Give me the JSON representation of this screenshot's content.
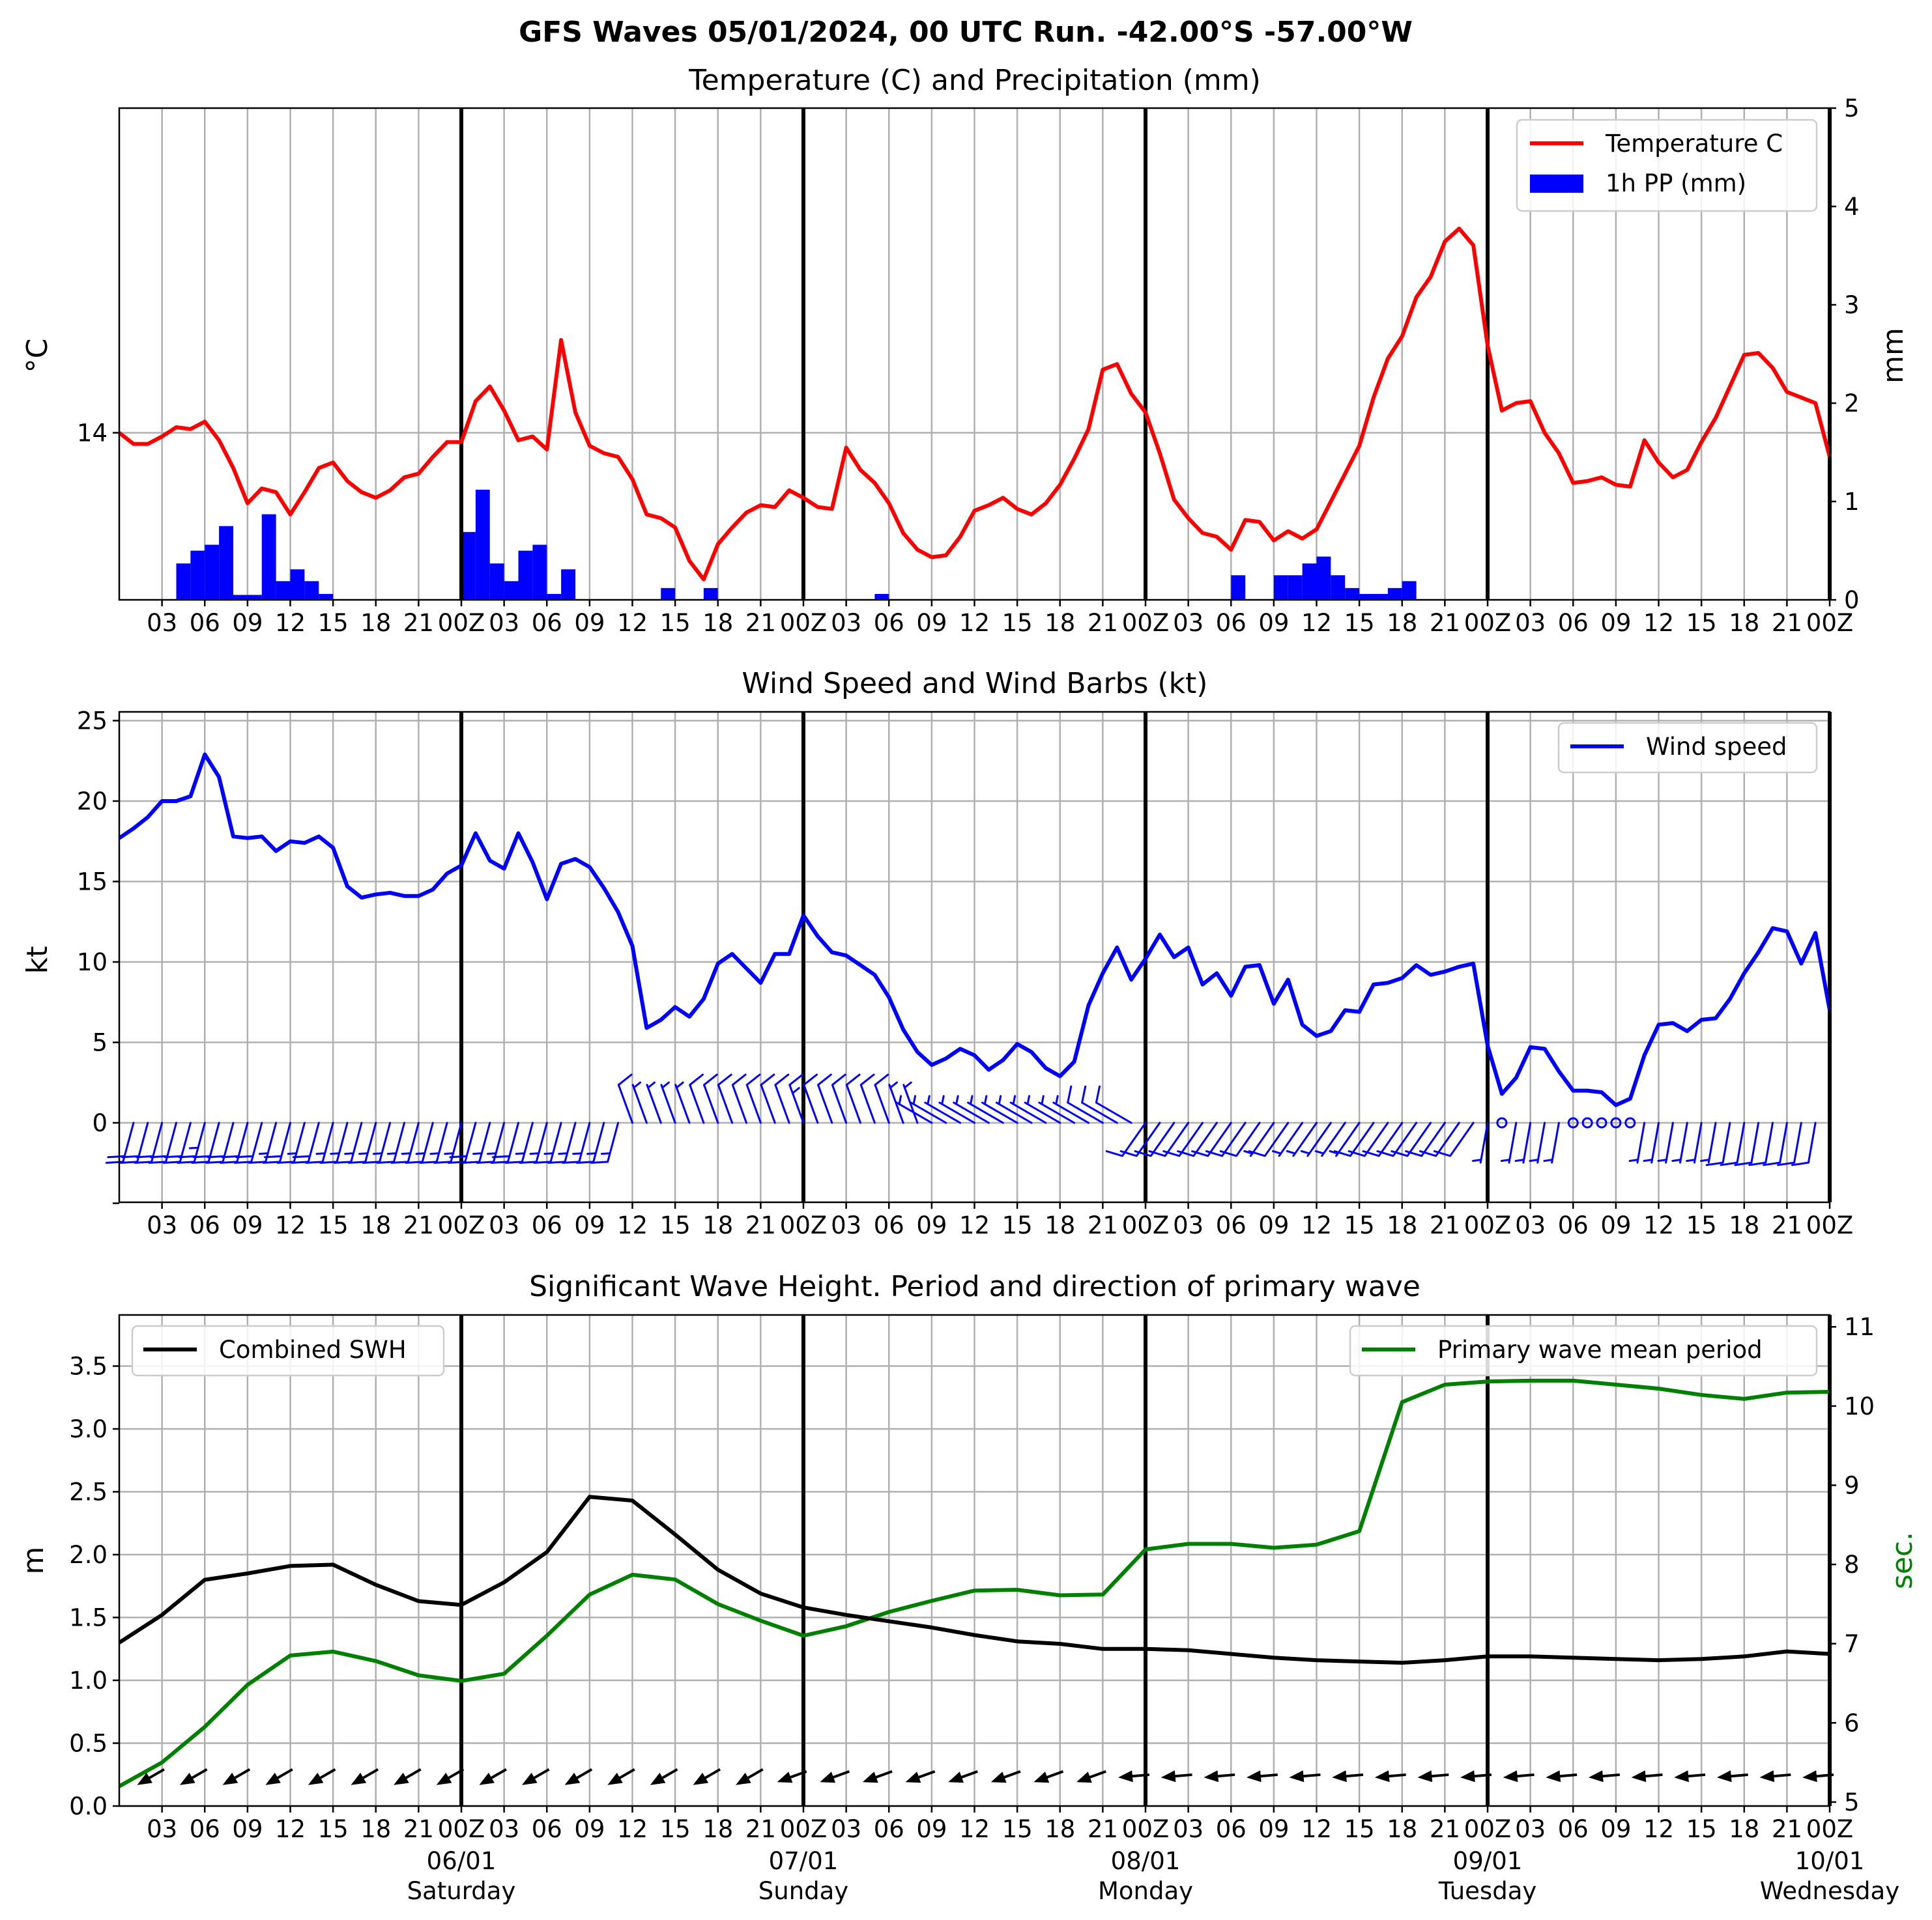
{
  "title": "GFS Waves 05/01/2024, 00 UTC Run. -42.00°S -57.00°W",
  "x_hour_labels": [
    "03",
    "06",
    "09",
    "12",
    "15",
    "18",
    "21",
    "00Z",
    "03",
    "06",
    "09",
    "12",
    "15",
    "18",
    "21",
    "00Z",
    "03",
    "06",
    "09",
    "12",
    "15",
    "18",
    "21",
    "00Z",
    "03",
    "06",
    "09",
    "12",
    "15",
    "18",
    "21",
    "00Z",
    "03",
    "06",
    "09",
    "12",
    "15",
    "18",
    "21",
    "00Z"
  ],
  "x_date_labels": [
    {
      "date": "06/01",
      "day": "Saturday"
    },
    {
      "date": "07/01",
      "day": "Sunday"
    },
    {
      "date": "08/01",
      "day": "Monday"
    },
    {
      "date": "09/01",
      "day": "Tuesday"
    },
    {
      "date": "10/01",
      "day": "Wednesday"
    }
  ],
  "colors": {
    "temperature": "#ff0000",
    "precip": "#0000ff",
    "wind": "#0000ff",
    "swh": "#000000",
    "period": "#008000"
  },
  "chart_data": [
    {
      "type": "line",
      "title": "Temperature (C) and Precipitation (mm)",
      "x_unit": "hours since 05/01/2024 00 UTC",
      "ylabel": "°C",
      "ylabel_right": "mm",
      "y_ticks": [
        "14"
      ],
      "y_right_ticks": [
        "0",
        "1",
        "2",
        "3",
        "4",
        "5"
      ],
      "ylim_right": [
        0,
        5
      ],
      "legend": [
        "Temperature C",
        "1h PP (mm)"
      ],
      "legend_position": "upper right",
      "grid": true,
      "temperature": {
        "name": "Temperature C",
        "x": [
          0,
          1,
          2,
          3,
          4,
          5,
          6,
          7,
          8,
          9,
          10,
          11,
          12,
          13,
          14,
          15,
          16,
          17,
          18,
          19,
          20,
          21,
          22,
          23,
          24,
          25,
          26,
          27,
          28,
          29,
          30,
          31,
          32,
          33,
          34,
          35,
          36,
          37,
          38,
          39,
          40,
          41,
          42,
          43,
          44,
          45,
          46,
          47,
          48,
          49,
          50,
          51,
          52,
          53,
          54,
          55,
          56,
          57,
          58,
          59,
          60,
          61,
          62,
          63,
          64,
          65,
          66,
          67,
          68,
          69,
          70,
          71,
          72,
          73,
          74,
          75,
          76,
          77,
          78,
          79,
          80,
          81,
          82,
          83,
          84,
          85,
          86,
          87,
          88,
          89,
          90,
          91,
          92,
          93,
          94,
          95,
          96,
          97,
          98,
          99,
          100,
          101,
          102,
          103,
          104,
          105,
          106,
          107,
          108,
          109,
          110,
          111,
          112,
          113,
          114,
          115,
          116,
          117,
          118,
          119,
          120
        ],
        "values": [
          14.0,
          13.4,
          13.4,
          13.8,
          14.3,
          14.2,
          14.6,
          13.6,
          12.1,
          10.2,
          11.0,
          10.8,
          9.6,
          10.8,
          12.1,
          12.4,
          11.4,
          10.8,
          10.5,
          10.9,
          11.6,
          11.8,
          12.7,
          13.5,
          13.5,
          15.7,
          16.5,
          15.2,
          13.6,
          13.8,
          13.1,
          19.0,
          15.1,
          13.3,
          12.9,
          12.7,
          11.5,
          9.6,
          9.4,
          8.9,
          7.1,
          6.1,
          8.0,
          8.9,
          9.7,
          10.1,
          10.0,
          10.9,
          10.5,
          10.0,
          9.9,
          13.2,
          12.0,
          11.3,
          10.2,
          8.6,
          7.7,
          7.3,
          7.4,
          8.4,
          9.8,
          10.1,
          10.5,
          9.9,
          9.6,
          10.2,
          11.2,
          12.6,
          14.2,
          17.4,
          17.7,
          16.1,
          15.1,
          12.9,
          10.4,
          9.4,
          8.6,
          8.4,
          7.7,
          9.3,
          9.2,
          8.2,
          8.7,
          8.3,
          8.8,
          10.3,
          11.8,
          13.3,
          15.9,
          18.0,
          19.2,
          21.3,
          22.4,
          24.3,
          25.0,
          24.1,
          18.7,
          15.2,
          15.6,
          15.7,
          14.0,
          12.9,
          11.3,
          11.4,
          11.6,
          11.2,
          11.1,
          13.6,
          12.4,
          11.6,
          12.0,
          13.5,
          14.8,
          16.5,
          18.2,
          18.3,
          17.5,
          16.2,
          15.9,
          15.6,
          12.7
        ]
      },
      "precipitation": {
        "name": "1h PP (mm)",
        "x": [
          0,
          1,
          2,
          3,
          4,
          5,
          6,
          7,
          8,
          9,
          10,
          11,
          12,
          13,
          14,
          15,
          16,
          17,
          18,
          19,
          20,
          21,
          22,
          23,
          24,
          25,
          26,
          27,
          28,
          29,
          30,
          31,
          32,
          33,
          34,
          35,
          36,
          37,
          38,
          39,
          40,
          41,
          42,
          43,
          44,
          45,
          46,
          47,
          48,
          49,
          50,
          51,
          52,
          53,
          54,
          55,
          56,
          57,
          58,
          59,
          60,
          61,
          62,
          63,
          64,
          65,
          66,
          67,
          68,
          69,
          70,
          71,
          72,
          73,
          74,
          75,
          76,
          77,
          78,
          79,
          80,
          81,
          82,
          83,
          84,
          85,
          86,
          87,
          88,
          89,
          90,
          91,
          92,
          93,
          94,
          95,
          96,
          97,
          98,
          99,
          100,
          101,
          102,
          103,
          104,
          105,
          106,
          107,
          108,
          109,
          110,
          111,
          112,
          113,
          114,
          115,
          116,
          117,
          118,
          119,
          120
        ],
        "values": [
          0,
          0,
          0,
          0,
          0.37,
          0.5,
          0.56,
          0.75,
          0.05,
          0.05,
          0.87,
          0.19,
          0.31,
          0.19,
          0.06,
          0,
          0,
          0,
          0,
          0,
          0,
          0,
          0,
          0,
          0.69,
          1.12,
          0.37,
          0.19,
          0.5,
          0.56,
          0.06,
          0.31,
          0,
          0,
          0,
          0,
          0,
          0,
          0.12,
          0,
          0,
          0.12,
          0,
          0,
          0,
          0,
          0,
          0,
          0,
          0,
          0,
          0,
          0,
          0.06,
          0,
          0,
          0,
          0,
          0,
          0,
          0,
          0,
          0,
          0,
          0,
          0,
          0,
          0,
          0,
          0,
          0,
          0,
          0,
          0,
          0,
          0,
          0,
          0,
          0.25,
          0,
          0,
          0.25,
          0.25,
          0.37,
          0.44,
          0.25,
          0.12,
          0.06,
          0.06,
          0.12,
          0.19,
          0,
          0,
          0,
          0,
          0,
          0,
          0,
          0,
          0,
          0,
          0,
          0,
          0,
          0,
          0,
          0,
          0,
          0,
          0,
          0,
          0,
          0,
          0,
          0,
          0,
          0,
          0,
          0,
          0,
          0
        ]
      }
    },
    {
      "type": "line",
      "title": "Wind Speed and Wind Barbs (kt)",
      "x_unit": "hours since 05/01/2024 00 UTC",
      "ylabel": "kt",
      "y_ticks": [
        "0",
        "5",
        "10",
        "15",
        "20",
        "25"
      ],
      "ylim": [
        -5,
        25.5
      ],
      "legend": [
        "Wind speed"
      ],
      "legend_position": "upper right",
      "grid": true,
      "series": [
        {
          "name": "Wind speed",
          "x": [
            0,
            1,
            2,
            3,
            4,
            5,
            6,
            7,
            8,
            9,
            10,
            11,
            12,
            13,
            14,
            15,
            16,
            17,
            18,
            19,
            20,
            21,
            22,
            23,
            24,
            25,
            26,
            27,
            28,
            29,
            30,
            31,
            32,
            33,
            34,
            35,
            36,
            37,
            38,
            39,
            40,
            41,
            42,
            43,
            44,
            45,
            46,
            47,
            48,
            49,
            50,
            51,
            52,
            53,
            54,
            55,
            56,
            57,
            58,
            59,
            60,
            61,
            62,
            63,
            64,
            65,
            66,
            67,
            68,
            69,
            70,
            71,
            72,
            73,
            74,
            75,
            76,
            77,
            78,
            79,
            80,
            81,
            82,
            83,
            84,
            85,
            86,
            87,
            88,
            89,
            90,
            91,
            92,
            93,
            94,
            95,
            96,
            97,
            98,
            99,
            100,
            101,
            102,
            103,
            104,
            105,
            106,
            107,
            108,
            109,
            110,
            111,
            112,
            113,
            114,
            115,
            116,
            117,
            118,
            119,
            120
          ],
          "values": [
            17.7,
            18.3,
            19.0,
            20.0,
            20.0,
            20.3,
            22.9,
            21.5,
            17.8,
            17.7,
            17.8,
            16.9,
            17.5,
            17.4,
            17.8,
            17.1,
            14.7,
            14.0,
            14.2,
            14.3,
            14.1,
            14.1,
            14.5,
            15.5,
            16.0,
            18.0,
            16.3,
            15.8,
            18.0,
            16.2,
            13.9,
            16.1,
            16.4,
            15.9,
            14.6,
            13.1,
            11.0,
            5.9,
            6.4,
            7.2,
            6.6,
            7.7,
            9.9,
            10.5,
            9.6,
            8.7,
            10.5,
            10.5,
            12.9,
            11.6,
            10.6,
            10.4,
            9.8,
            9.2,
            7.8,
            5.8,
            4.4,
            3.6,
            4.0,
            4.6,
            4.2,
            3.3,
            3.9,
            4.9,
            4.4,
            3.4,
            2.9,
            3.8,
            7.3,
            9.3,
            10.9,
            8.9,
            10.2,
            11.7,
            10.3,
            10.9,
            8.6,
            9.3,
            7.9,
            9.7,
            9.8,
            7.4,
            8.9,
            6.1,
            5.4,
            5.7,
            7.0,
            6.9,
            8.6,
            8.7,
            9.0,
            9.8,
            9.2,
            9.4,
            9.7,
            9.9,
            4.8,
            1.8,
            2.8,
            4.7,
            4.6,
            3.2,
            2.0,
            2.0,
            1.9,
            1.1,
            1.5,
            4.2,
            6.1,
            6.2,
            5.7,
            6.4,
            6.5,
            7.7,
            9.3,
            10.6,
            12.1,
            11.9,
            9.9,
            11.8,
            7.0
          ]
        }
      ],
      "barbs_direction_deg": [
        {
          "from_hour": 0,
          "to_hour": 36,
          "deg": 195
        },
        {
          "from_hour": 36,
          "to_hour": 57,
          "deg": 340
        },
        {
          "from_hour": 57,
          "to_hour": 72,
          "deg": 300
        },
        {
          "from_hour": 72,
          "to_hour": 96,
          "deg": 215
        },
        {
          "from_hour": 96,
          "to_hour": 120,
          "deg": 190
        }
      ]
    },
    {
      "type": "line",
      "title": "Significant Wave Height. Period and direction of primary wave",
      "x_unit": "hours since 05/01/2024 00 UTC",
      "ylabel": "m",
      "ylabel_right": "sec.",
      "y_ticks": [
        "0.0",
        "0.5",
        "1.0",
        "1.5",
        "2.0",
        "2.5",
        "3.0",
        "3.5"
      ],
      "y_right_ticks": [
        "5",
        "6",
        "7",
        "8",
        "9",
        "10",
        "11"
      ],
      "ylim": [
        0,
        3.9
      ],
      "ylim_right": [
        4.95,
        11.15
      ],
      "legend_left": [
        "Combined SWH"
      ],
      "legend_right": [
        "Primary wave mean period"
      ],
      "grid": true,
      "series": [
        {
          "name": "Combined SWH",
          "x": [
            0,
            3,
            6,
            9,
            12,
            15,
            18,
            21,
            24,
            27,
            30,
            33,
            36,
            39,
            42,
            45,
            48,
            51,
            54,
            57,
            60,
            63,
            66,
            69,
            72,
            75,
            78,
            81,
            84,
            87,
            90,
            93,
            96,
            99,
            102,
            105,
            108,
            111,
            114,
            117,
            120
          ],
          "values": [
            1.3,
            1.52,
            1.8,
            1.85,
            1.91,
            1.92,
            1.76,
            1.63,
            1.6,
            1.78,
            2.02,
            2.46,
            2.43,
            2.16,
            1.88,
            1.69,
            1.58,
            1.52,
            1.47,
            1.42,
            1.36,
            1.31,
            1.29,
            1.25,
            1.25,
            1.24,
            1.21,
            1.18,
            1.16,
            1.15,
            1.14,
            1.16,
            1.19,
            1.19,
            1.18,
            1.17,
            1.16,
            1.17,
            1.19,
            1.23,
            1.21
          ]
        },
        {
          "name": "Primary wave mean period",
          "axis": "right",
          "x": [
            0,
            3,
            6,
            9,
            12,
            15,
            18,
            21,
            24,
            27,
            30,
            33,
            36,
            39,
            42,
            45,
            48,
            51,
            54,
            57,
            60,
            63,
            66,
            69,
            72,
            75,
            78,
            81,
            84,
            87,
            90,
            93,
            96,
            99,
            102,
            105,
            108,
            111,
            114,
            117,
            120
          ],
          "values": [
            5.2,
            5.5,
            5.95,
            6.48,
            6.85,
            6.9,
            6.78,
            6.6,
            6.53,
            6.62,
            7.1,
            7.62,
            7.87,
            7.81,
            7.5,
            7.29,
            7.1,
            7.22,
            7.4,
            7.54,
            7.67,
            7.68,
            7.61,
            7.62,
            8.19,
            8.26,
            8.26,
            8.21,
            8.25,
            8.42,
            10.05,
            10.27,
            10.31,
            10.32,
            10.32,
            10.27,
            10.22,
            10.14,
            10.09,
            10.17,
            10.18
          ]
        }
      ],
      "wave_direction_deg": [
        {
          "from_hour": 0,
          "to_hour": 48,
          "deg": 60
        },
        {
          "from_hour": 48,
          "to_hour": 72,
          "deg": 70
        },
        {
          "from_hour": 72,
          "to_hour": 121,
          "deg": 85
        }
      ]
    }
  ]
}
